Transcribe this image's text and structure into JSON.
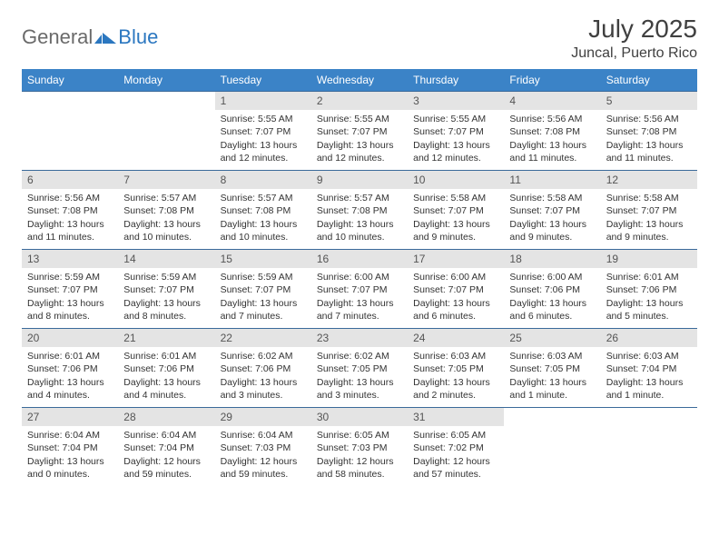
{
  "logo": {
    "text1": "General",
    "text2": "Blue",
    "color1": "#6a6a6a",
    "color2": "#2b77c0"
  },
  "header": {
    "month_title": "July 2025",
    "location": "Juncal, Puerto Rico"
  },
  "colors": {
    "header_bar": "#3b83c7",
    "header_text": "#ffffff",
    "daynum_bg": "#e4e4e4",
    "daynum_text": "#555555",
    "row_border": "#3b6a9a",
    "body_text": "#333333"
  },
  "weekdays": [
    "Sunday",
    "Monday",
    "Tuesday",
    "Wednesday",
    "Thursday",
    "Friday",
    "Saturday"
  ],
  "weeks": [
    [
      null,
      null,
      {
        "n": "1",
        "sr": "5:55 AM",
        "ss": "7:07 PM",
        "dl": "13 hours and 12 minutes."
      },
      {
        "n": "2",
        "sr": "5:55 AM",
        "ss": "7:07 PM",
        "dl": "13 hours and 12 minutes."
      },
      {
        "n": "3",
        "sr": "5:55 AM",
        "ss": "7:07 PM",
        "dl": "13 hours and 12 minutes."
      },
      {
        "n": "4",
        "sr": "5:56 AM",
        "ss": "7:08 PM",
        "dl": "13 hours and 11 minutes."
      },
      {
        "n": "5",
        "sr": "5:56 AM",
        "ss": "7:08 PM",
        "dl": "13 hours and 11 minutes."
      }
    ],
    [
      {
        "n": "6",
        "sr": "5:56 AM",
        "ss": "7:08 PM",
        "dl": "13 hours and 11 minutes."
      },
      {
        "n": "7",
        "sr": "5:57 AM",
        "ss": "7:08 PM",
        "dl": "13 hours and 10 minutes."
      },
      {
        "n": "8",
        "sr": "5:57 AM",
        "ss": "7:08 PM",
        "dl": "13 hours and 10 minutes."
      },
      {
        "n": "9",
        "sr": "5:57 AM",
        "ss": "7:08 PM",
        "dl": "13 hours and 10 minutes."
      },
      {
        "n": "10",
        "sr": "5:58 AM",
        "ss": "7:07 PM",
        "dl": "13 hours and 9 minutes."
      },
      {
        "n": "11",
        "sr": "5:58 AM",
        "ss": "7:07 PM",
        "dl": "13 hours and 9 minutes."
      },
      {
        "n": "12",
        "sr": "5:58 AM",
        "ss": "7:07 PM",
        "dl": "13 hours and 9 minutes."
      }
    ],
    [
      {
        "n": "13",
        "sr": "5:59 AM",
        "ss": "7:07 PM",
        "dl": "13 hours and 8 minutes."
      },
      {
        "n": "14",
        "sr": "5:59 AM",
        "ss": "7:07 PM",
        "dl": "13 hours and 8 minutes."
      },
      {
        "n": "15",
        "sr": "5:59 AM",
        "ss": "7:07 PM",
        "dl": "13 hours and 7 minutes."
      },
      {
        "n": "16",
        "sr": "6:00 AM",
        "ss": "7:07 PM",
        "dl": "13 hours and 7 minutes."
      },
      {
        "n": "17",
        "sr": "6:00 AM",
        "ss": "7:07 PM",
        "dl": "13 hours and 6 minutes."
      },
      {
        "n": "18",
        "sr": "6:00 AM",
        "ss": "7:06 PM",
        "dl": "13 hours and 6 minutes."
      },
      {
        "n": "19",
        "sr": "6:01 AM",
        "ss": "7:06 PM",
        "dl": "13 hours and 5 minutes."
      }
    ],
    [
      {
        "n": "20",
        "sr": "6:01 AM",
        "ss": "7:06 PM",
        "dl": "13 hours and 4 minutes."
      },
      {
        "n": "21",
        "sr": "6:01 AM",
        "ss": "7:06 PM",
        "dl": "13 hours and 4 minutes."
      },
      {
        "n": "22",
        "sr": "6:02 AM",
        "ss": "7:06 PM",
        "dl": "13 hours and 3 minutes."
      },
      {
        "n": "23",
        "sr": "6:02 AM",
        "ss": "7:05 PM",
        "dl": "13 hours and 3 minutes."
      },
      {
        "n": "24",
        "sr": "6:03 AM",
        "ss": "7:05 PM",
        "dl": "13 hours and 2 minutes."
      },
      {
        "n": "25",
        "sr": "6:03 AM",
        "ss": "7:05 PM",
        "dl": "13 hours and 1 minute."
      },
      {
        "n": "26",
        "sr": "6:03 AM",
        "ss": "7:04 PM",
        "dl": "13 hours and 1 minute."
      }
    ],
    [
      {
        "n": "27",
        "sr": "6:04 AM",
        "ss": "7:04 PM",
        "dl": "13 hours and 0 minutes."
      },
      {
        "n": "28",
        "sr": "6:04 AM",
        "ss": "7:04 PM",
        "dl": "12 hours and 59 minutes."
      },
      {
        "n": "29",
        "sr": "6:04 AM",
        "ss": "7:03 PM",
        "dl": "12 hours and 59 minutes."
      },
      {
        "n": "30",
        "sr": "6:05 AM",
        "ss": "7:03 PM",
        "dl": "12 hours and 58 minutes."
      },
      {
        "n": "31",
        "sr": "6:05 AM",
        "ss": "7:02 PM",
        "dl": "12 hours and 57 minutes."
      },
      null,
      null
    ]
  ],
  "labels": {
    "sunrise": "Sunrise:",
    "sunset": "Sunset:",
    "daylight": "Daylight:"
  }
}
